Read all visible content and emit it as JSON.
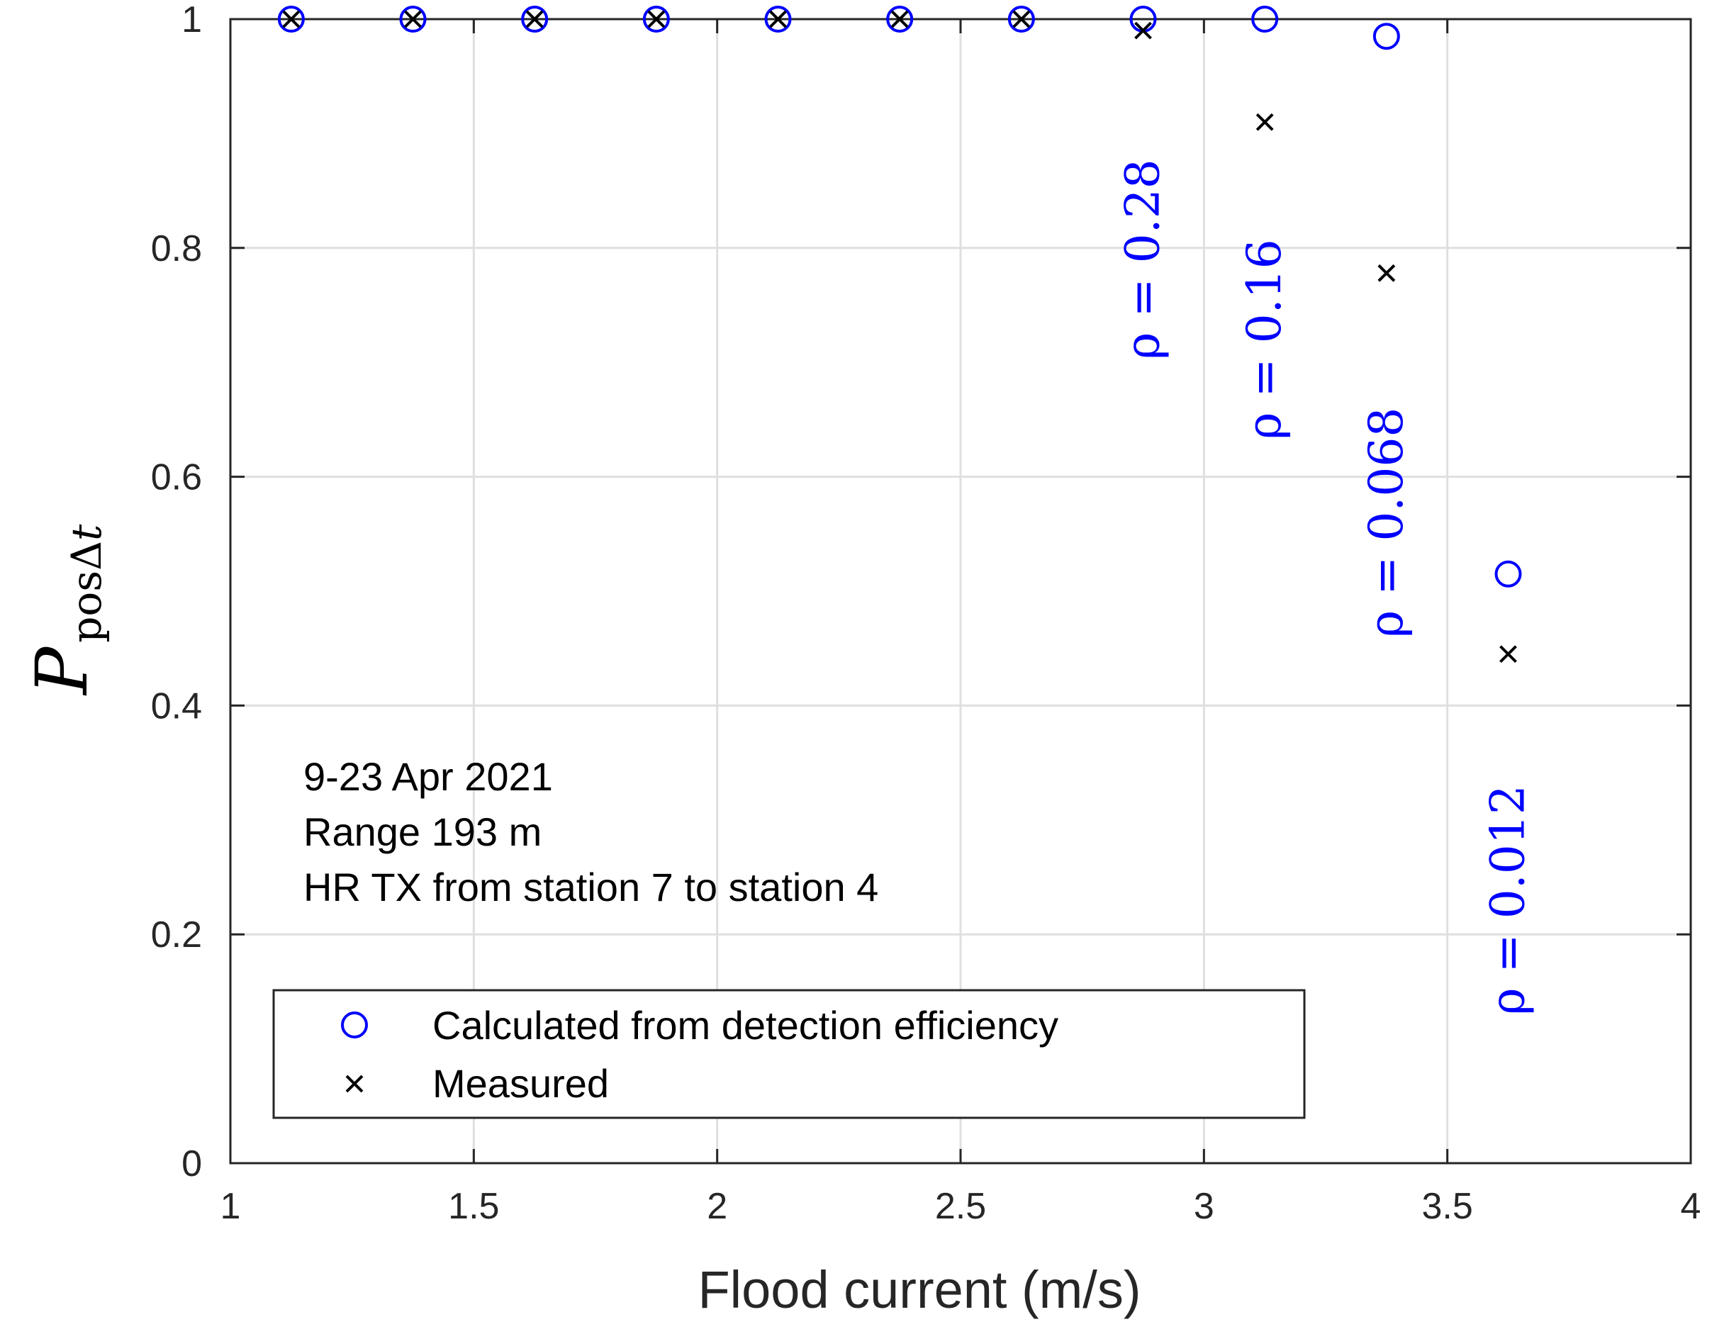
{
  "chart_data": {
    "type": "scatter",
    "xlabel": "Flood current (m/s)",
    "ylabel": {
      "main": "P",
      "sub": "posΔ",
      "sub_italic": "t"
    },
    "xlim": [
      1,
      4
    ],
    "ylim": [
      0,
      1
    ],
    "xticks": [
      1,
      1.5,
      2,
      2.5,
      3,
      3.5,
      4
    ],
    "xtick_labels": [
      "1",
      "1.5",
      "2",
      "2.5",
      "3",
      "3.5",
      "4"
    ],
    "yticks": [
      0,
      0.2,
      0.4,
      0.6,
      0.8,
      1
    ],
    "ytick_labels": [
      "0",
      "0.2",
      "0.4",
      "0.6",
      "0.8",
      "1"
    ],
    "grid": true,
    "series": [
      {
        "name": "Calculated from detection efficiency",
        "marker": "circle",
        "color": "#0000ff",
        "x": [
          1.125,
          1.375,
          1.625,
          1.875,
          2.125,
          2.375,
          2.625,
          2.875,
          3.125,
          3.375,
          3.625
        ],
        "y": [
          1.0,
          1.0,
          1.0,
          1.0,
          1.0,
          1.0,
          1.0,
          1.0,
          1.0,
          0.985,
          0.515
        ]
      },
      {
        "name": "Measured",
        "marker": "x",
        "color": "#000000",
        "x": [
          1.125,
          1.375,
          1.625,
          1.875,
          2.125,
          2.375,
          2.625,
          2.875,
          3.125,
          3.375,
          3.625
        ],
        "y": [
          1.0,
          1.0,
          1.0,
          1.0,
          1.0,
          1.0,
          1.0,
          0.99,
          0.91,
          0.778,
          0.445
        ]
      }
    ],
    "rho_annotations": [
      {
        "label": "ρ = 0.28",
        "x": 2.875,
        "y": 0.79
      },
      {
        "label": "ρ = 0.16",
        "x": 3.125,
        "y": 0.72
      },
      {
        "label": "ρ = 0.068",
        "x": 3.375,
        "y": 0.56
      },
      {
        "label": "ρ = 0.012",
        "x": 3.625,
        "y": 0.23
      }
    ],
    "rho_color": "#0000ff",
    "annotations": [
      "9-23 Apr 2021",
      "Range 193 m",
      "HR TX from station 7 to station 4"
    ],
    "legend": {
      "position": "bottom-left",
      "entries": [
        "Calculated from detection efficiency",
        "Measured"
      ]
    }
  }
}
